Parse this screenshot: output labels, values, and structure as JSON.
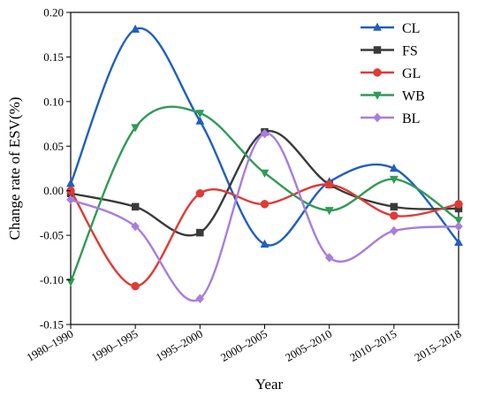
{
  "chart_data": {
    "type": "line",
    "title": "",
    "xlabel": "Year",
    "ylabel": "Change rate of ESV(%)",
    "categories": [
      "1980–1990",
      "1990–1995",
      "1995–2000",
      "2000–2005",
      "2005–2010",
      "2010–2015",
      "2015–2018"
    ],
    "ylim": [
      -0.15,
      0.2
    ],
    "yticks": [
      "-0.15",
      "-0.10",
      "-0.05",
      "0.00",
      "0.05",
      "0.10",
      "0.15",
      "0.20"
    ],
    "grid": false,
    "smoothed": true,
    "legend_position": "top-right",
    "series": [
      {
        "name": "CL",
        "color": "#1f5fc1",
        "marker": "triangle-up",
        "values": [
          0.008,
          0.181,
          0.078,
          -0.06,
          0.01,
          0.025,
          -0.058
        ]
      },
      {
        "name": "FS",
        "color": "#3a3a3a",
        "marker": "square",
        "values": [
          -0.003,
          -0.018,
          -0.047,
          0.066,
          0.007,
          -0.018,
          -0.02
        ]
      },
      {
        "name": "GL",
        "color": "#e03a35",
        "marker": "circle",
        "values": [
          0.0,
          -0.107,
          -0.003,
          -0.015,
          0.007,
          -0.028,
          -0.015
        ]
      },
      {
        "name": "WB",
        "color": "#2f9b55",
        "marker": "triangle-down",
        "values": [
          -0.102,
          0.071,
          0.087,
          0.02,
          -0.022,
          0.013,
          -0.033
        ]
      },
      {
        "name": "BL",
        "color": "#a77de0",
        "marker": "diamond",
        "values": [
          -0.01,
          -0.04,
          -0.121,
          0.064,
          -0.075,
          -0.045,
          -0.04
        ]
      }
    ]
  }
}
